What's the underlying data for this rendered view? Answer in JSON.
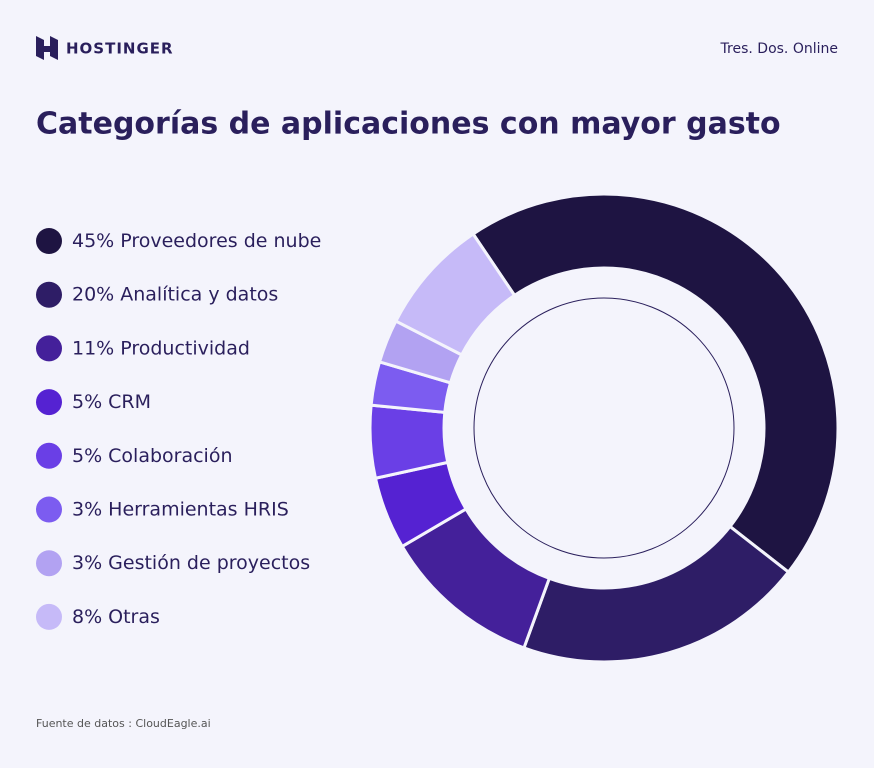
{
  "brand": "HOSTINGER",
  "partner": "Tres. Dos. Online",
  "chart_data": {
    "type": "pie",
    "title": "Categorías de aplicaciones con mayor gasto",
    "categories": [
      "Proveedores de nube",
      "Analítica y datos",
      "Productividad",
      "CRM",
      "Colaboración",
      "Herramientas HRIS",
      "Gestión de proyectos",
      "Otras"
    ],
    "values": [
      45,
      20,
      11,
      5,
      5,
      3,
      3,
      8
    ],
    "value_labels": [
      "45%",
      "20%",
      "11%",
      "5%",
      "5%",
      "3%",
      "3%",
      "8%"
    ],
    "colors": [
      "#1e1442",
      "#2e1d66",
      "#44209a",
      "#5522d2",
      "#6a3fe6",
      "#7c5cf0",
      "#b2a2f2",
      "#c6baf8"
    ],
    "legend": "left"
  },
  "source": "Fuente de datos : CloudEagle.ai"
}
